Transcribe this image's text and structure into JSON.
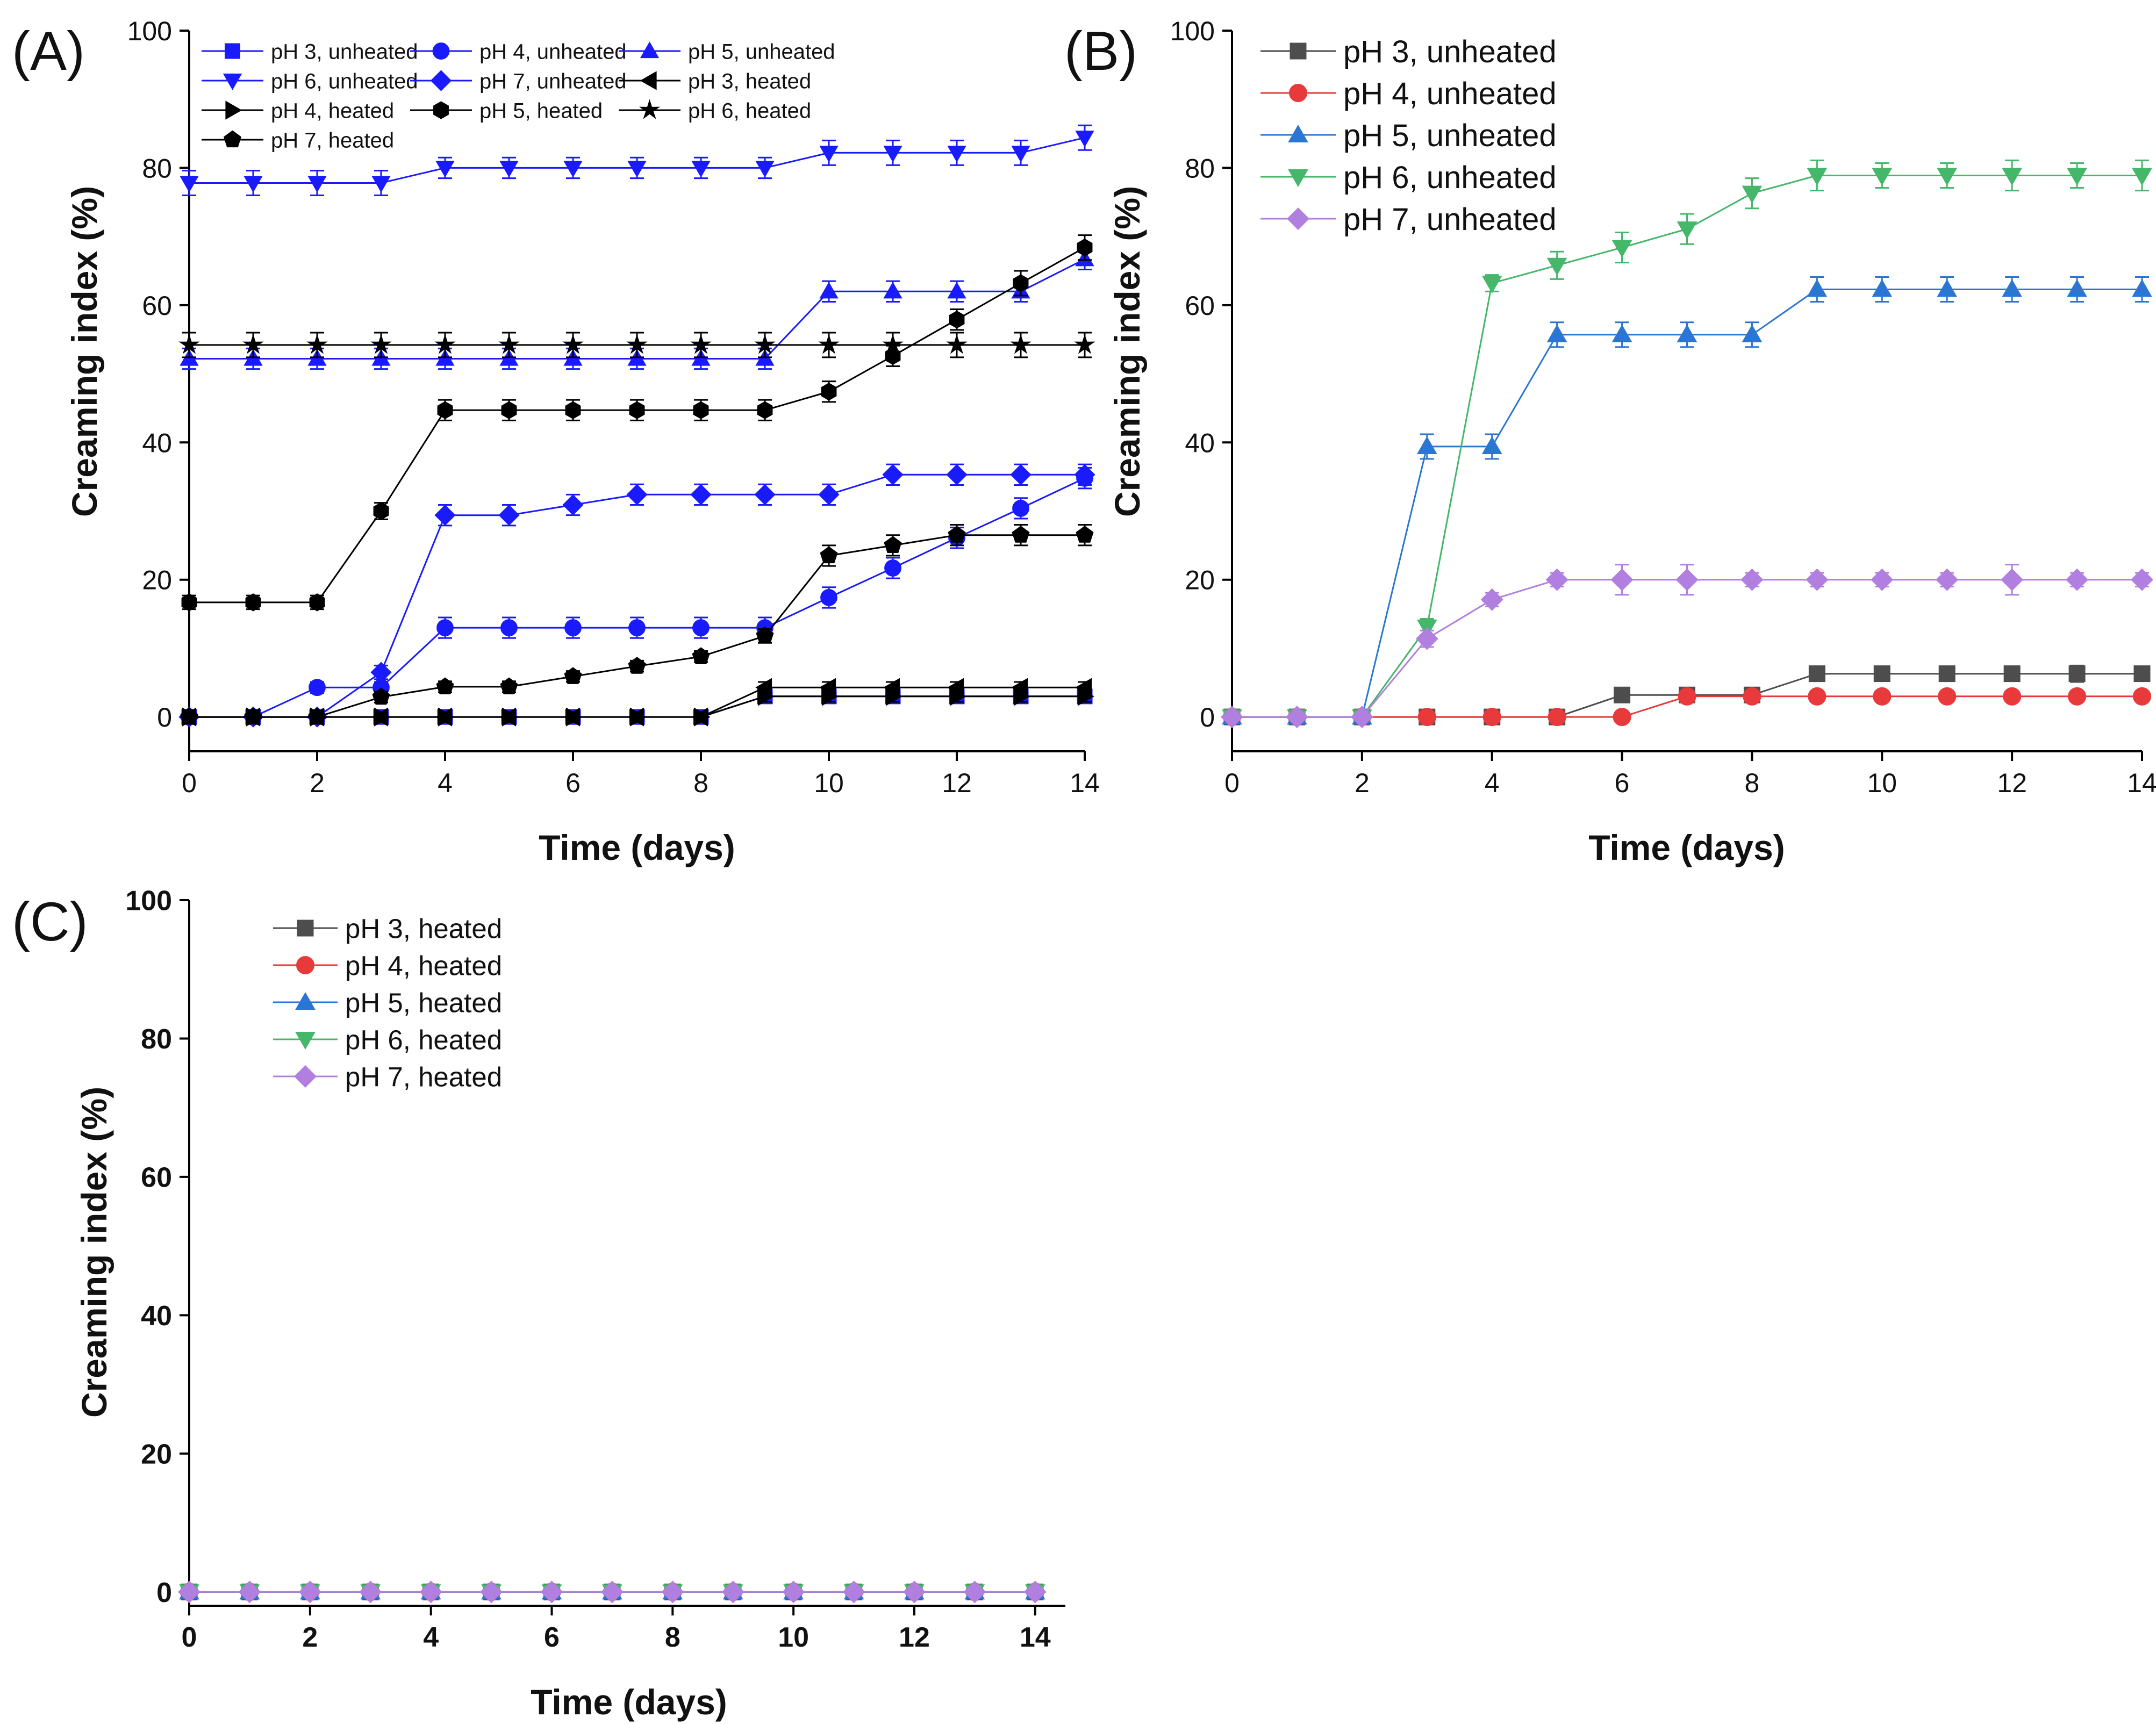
{
  "chart_data": [
    {
      "id": "A",
      "panel_label": "(A)",
      "type": "line",
      "xlabel": "Time (days)",
      "ylabel": "Creaming index (%)",
      "xlim": [
        0,
        14
      ],
      "ylim": [
        -5,
        100
      ],
      "xticks": [
        0,
        2,
        4,
        6,
        8,
        10,
        12,
        14
      ],
      "yticks": [
        0,
        20,
        40,
        60,
        80,
        100
      ],
      "x": [
        0,
        1,
        2,
        3,
        4,
        5,
        6,
        7,
        8,
        9,
        10,
        11,
        12,
        13,
        14
      ],
      "legend_columns": 3,
      "series": [
        {
          "name": "pH 3, unheated",
          "color": "#1a1aff",
          "marker": "square",
          "values": [
            0,
            0,
            0,
            0,
            0,
            0,
            0,
            0,
            0,
            3,
            3,
            3,
            3,
            3,
            3
          ],
          "errors": [
            0,
            0,
            0,
            0,
            0,
            0,
            0,
            0,
            0,
            0.8,
            0.8,
            0.8,
            0.8,
            0.8,
            0.8
          ]
        },
        {
          "name": "pH 4, unheated",
          "color": "#1a1aff",
          "marker": "circle",
          "values": [
            0,
            0,
            4.3,
            4.3,
            13,
            13,
            13,
            13,
            13,
            13,
            17.4,
            21.7,
            26.1,
            30.4,
            34.8
          ],
          "errors": [
            0,
            0,
            0.8,
            0.8,
            1.5,
            1.5,
            1.5,
            1.5,
            1.5,
            1.5,
            1.5,
            1.5,
            1.5,
            1.5,
            1.5
          ]
        },
        {
          "name": "pH 5, unheated",
          "color": "#1a1aff",
          "marker": "triangle-up",
          "values": [
            52.2,
            52.2,
            52.2,
            52.2,
            52.2,
            52.2,
            52.2,
            52.2,
            52.2,
            52.2,
            62,
            62,
            62,
            62,
            66.7
          ],
          "errors": [
            1.5,
            1.5,
            1.5,
            1.5,
            1.5,
            1.5,
            1.5,
            1.5,
            1.5,
            1.5,
            1.5,
            1.5,
            1.5,
            1.5,
            1.5
          ]
        },
        {
          "name": "pH 6, unheated",
          "color": "#1a1aff",
          "marker": "triangle-down",
          "values": [
            77.8,
            77.8,
            77.8,
            77.8,
            80,
            80,
            80,
            80,
            80,
            80,
            82.2,
            82.2,
            82.2,
            82.2,
            84.4
          ],
          "errors": [
            1.8,
            1.8,
            1.8,
            1.8,
            1.5,
            1.5,
            1.5,
            1.5,
            1.5,
            1.5,
            1.8,
            1.8,
            1.8,
            1.8,
            1.8
          ]
        },
        {
          "name": "pH 7, unheated",
          "color": "#1a1aff",
          "marker": "diamond",
          "values": [
            0,
            0,
            0,
            6.5,
            29.4,
            29.4,
            30.9,
            32.4,
            32.4,
            32.4,
            32.4,
            35.3,
            35.3,
            35.3,
            35.3
          ],
          "errors": [
            0,
            0,
            0,
            1,
            1.5,
            1.5,
            1.5,
            1.5,
            1.5,
            1.5,
            1.5,
            1.5,
            1.5,
            1.5,
            1.5
          ]
        },
        {
          "name": "pH 3, heated",
          "color": "#000000",
          "marker": "triangle-left",
          "values": [
            0,
            0,
            0,
            0,
            0,
            0,
            0,
            0,
            0,
            4.3,
            4.3,
            4.3,
            4.3,
            4.3,
            4.3
          ],
          "errors": [
            0,
            0,
            0,
            0,
            0,
            0,
            0,
            0,
            0,
            0.8,
            0.8,
            0.8,
            0.8,
            0.8,
            0.8
          ]
        },
        {
          "name": "pH 4, heated",
          "color": "#000000",
          "marker": "triangle-right",
          "values": [
            0,
            0,
            0,
            0,
            0,
            0,
            0,
            0,
            0,
            3,
            3,
            3,
            3,
            3,
            3
          ],
          "errors": [
            0,
            0,
            0,
            0,
            0,
            0,
            0,
            0,
            0,
            0.8,
            0.8,
            0.8,
            0.8,
            0.8,
            0.8
          ]
        },
        {
          "name": "pH 5, heated",
          "color": "#000000",
          "marker": "hexagon",
          "values": [
            16.7,
            16.7,
            16.7,
            30,
            44.7,
            44.7,
            44.7,
            44.7,
            44.7,
            44.7,
            47.4,
            52.6,
            57.9,
            63.2,
            68.4
          ],
          "errors": [
            1,
            1,
            1,
            1.2,
            1.5,
            1.5,
            1.5,
            1.5,
            1.5,
            1.5,
            1.5,
            1.5,
            1.5,
            1.8,
            1.8
          ]
        },
        {
          "name": "pH 6, heated",
          "color": "#000000",
          "marker": "star",
          "values": [
            54.2,
            54.2,
            54.2,
            54.2,
            54.2,
            54.2,
            54.2,
            54.2,
            54.2,
            54.2,
            54.2,
            54.2,
            54.2,
            54.2,
            54.2
          ],
          "errors": [
            1.8,
            1.8,
            1.8,
            1.8,
            1.8,
            1.8,
            1.8,
            1.8,
            1.8,
            1.8,
            1.8,
            1.8,
            1.8,
            1.8,
            1.8
          ]
        },
        {
          "name": "pH 7, heated",
          "color": "#000000",
          "marker": "pentagon",
          "values": [
            0,
            0,
            0,
            2.9,
            4.4,
            4.4,
            5.9,
            7.4,
            8.8,
            11.8,
            23.5,
            25,
            26.5,
            26.5,
            26.5
          ],
          "errors": [
            0,
            0,
            0,
            0.8,
            0.8,
            0.8,
            0.8,
            0.8,
            0.8,
            1,
            1.5,
            1.5,
            1.5,
            1.5,
            1.5
          ]
        }
      ]
    },
    {
      "id": "B",
      "panel_label": "(B)",
      "type": "line",
      "xlabel": "Time (days)",
      "ylabel": "Creaming index (%)",
      "xlim": [
        0,
        14
      ],
      "ylim": [
        -5,
        100
      ],
      "xticks": [
        0,
        2,
        4,
        6,
        8,
        10,
        12,
        14
      ],
      "yticks": [
        0,
        20,
        40,
        60,
        80,
        100
      ],
      "x": [
        0,
        1,
        2,
        3,
        4,
        5,
        6,
        7,
        8,
        9,
        10,
        11,
        12,
        13,
        14
      ],
      "legend_columns": 1,
      "series": [
        {
          "name": "pH 3, unheated",
          "color": "#4d4d4d",
          "marker": "square",
          "values": [
            0,
            0,
            0,
            0,
            0,
            0,
            3.2,
            3.2,
            3.2,
            6.3,
            6.3,
            6.3,
            6.3,
            6.3,
            6.3
          ],
          "errors": [
            0,
            0,
            0,
            0,
            0,
            0,
            0.5,
            0.5,
            0.5,
            0.8,
            0.8,
            0.8,
            0.8,
            1.2,
            0.8
          ]
        },
        {
          "name": "pH 4, unheated",
          "color": "#e8393b",
          "marker": "circle",
          "values": [
            0,
            0,
            0,
            0,
            0,
            0,
            0,
            3,
            3,
            3,
            3,
            3,
            3,
            3,
            3
          ],
          "errors": [
            0,
            0,
            0,
            0,
            0,
            0,
            0,
            0.5,
            0.5,
            0.5,
            0.5,
            0.5,
            0.5,
            0.5,
            0.5
          ]
        },
        {
          "name": "pH 5, unheated",
          "color": "#2b76d2",
          "marker": "triangle-up",
          "values": [
            0,
            0,
            0,
            39.4,
            39.4,
            55.7,
            55.7,
            55.7,
            55.7,
            62.3,
            62.3,
            62.3,
            62.3,
            62.3,
            62.3
          ],
          "errors": [
            0,
            0,
            0,
            1.8,
            1.8,
            1.8,
            1.8,
            1.8,
            1.8,
            1.8,
            1.8,
            1.8,
            1.8,
            1.8,
            1.8
          ]
        },
        {
          "name": "pH 6, unheated",
          "color": "#44b76a",
          "marker": "triangle-down",
          "values": [
            0,
            0,
            0,
            13.1,
            63.2,
            65.8,
            68.4,
            71.1,
            76.3,
            78.9,
            78.9,
            78.9,
            78.9,
            78.9,
            78.9
          ],
          "errors": [
            0,
            0,
            0,
            1.2,
            1.2,
            2,
            2.2,
            2.2,
            2.2,
            2.2,
            1.8,
            1.8,
            2.2,
            1.8,
            2.2
          ]
        },
        {
          "name": "pH 7, unheated",
          "color": "#b07fe0",
          "marker": "diamond",
          "values": [
            0,
            0,
            0,
            11.4,
            17.1,
            20,
            20,
            20,
            20,
            20,
            20,
            20,
            20,
            20,
            20
          ],
          "errors": [
            0,
            0,
            0,
            1.2,
            1,
            1,
            2.2,
            2.2,
            1,
            1,
            1,
            1,
            2.2,
            1,
            1
          ]
        }
      ]
    },
    {
      "id": "C",
      "panel_label": "(C)",
      "type": "line",
      "xlabel": "Time (days)",
      "ylabel": "Creaming index (%)",
      "xlim": [
        0,
        14.5
      ],
      "ylim": [
        -2,
        100
      ],
      "xticks": [
        0,
        2,
        4,
        6,
        8,
        10,
        12,
        14
      ],
      "yticks": [
        0,
        20,
        40,
        60,
        80,
        100
      ],
      "x": [
        0,
        1,
        2,
        3,
        4,
        5,
        6,
        7,
        8,
        9,
        10,
        11,
        12,
        13,
        14
      ],
      "legend_columns": 1,
      "series": [
        {
          "name": "pH 3, heated",
          "color": "#4d4d4d",
          "marker": "square",
          "values": [
            0,
            0,
            0,
            0,
            0,
            0,
            0,
            0,
            0,
            0,
            0,
            0,
            0,
            0,
            0
          ]
        },
        {
          "name": "pH 4, heated",
          "color": "#e8393b",
          "marker": "circle",
          "values": [
            0,
            0,
            0,
            0,
            0,
            0,
            0,
            0,
            0,
            0,
            0,
            0,
            0,
            0,
            0
          ]
        },
        {
          "name": "pH 5, heated",
          "color": "#2b76d2",
          "marker": "triangle-up",
          "values": [
            0,
            0,
            0,
            0,
            0,
            0,
            0,
            0,
            0,
            0,
            0,
            0,
            0,
            0,
            0
          ]
        },
        {
          "name": "pH 6, heated",
          "color": "#44b76a",
          "marker": "triangle-down",
          "values": [
            0,
            0,
            0,
            0,
            0,
            0,
            0,
            0,
            0,
            0,
            0,
            0,
            0,
            0,
            0
          ]
        },
        {
          "name": "pH 7, heated",
          "color": "#b07fe0",
          "marker": "diamond",
          "values": [
            0,
            0,
            0,
            0,
            0,
            0,
            0,
            0,
            0,
            0,
            0,
            0,
            0,
            0,
            0
          ]
        }
      ]
    }
  ]
}
